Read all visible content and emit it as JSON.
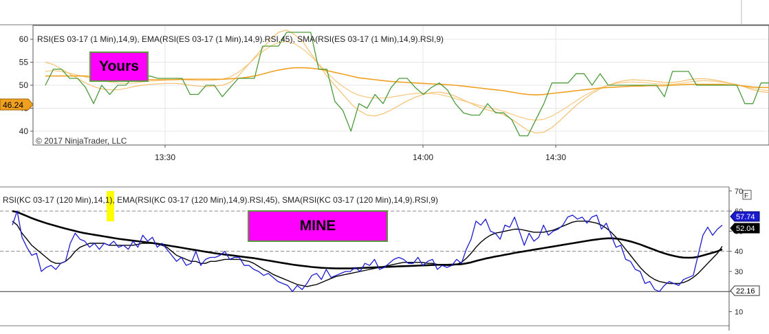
{
  "top_chart": {
    "indicator_label": "RSI(ES 03-17 (1 Min),14,9), EMA(RSI(ES 03-17 (1 Min),14,9).RSI,45), SMA(RSI(ES 03-17 (1 Min),14,9).RSI,9)",
    "copyright": "© 2017 NinjaTrader, LLC",
    "current_value_badge": "46.24",
    "callout_label": "Yours",
    "colors": {
      "badge": "#f0a020",
      "callout": "#ff00ff"
    }
  },
  "bottom_chart": {
    "indicator_label": "RSI(KC 03-17 (120 Min),14,1), EMA(RSI(KC 03-17 (120 Min),14,9).RSI,45), SMA(RSI(KC 03-17 (120 Min),14,9).RSI,9)",
    "callout_label": "MINE",
    "corner_button": "F",
    "badges": [
      "57.74",
      "52.04",
      "22.16"
    ],
    "colors": {
      "callout": "#ff00ff",
      "highlight": "#ffff00"
    }
  },
  "chart_data": [
    {
      "type": "line",
      "x_ticks": [
        "13:30",
        "14:00",
        "14:30"
      ],
      "y_ticks": [
        40,
        45,
        50,
        55,
        60
      ],
      "ylim": [
        37,
        63
      ],
      "grid": true,
      "colors": {
        "rsi": "#4a9a3a",
        "ema": "#f0a020",
        "sma": "#f5c070",
        "sma2": "#f8c880"
      },
      "series": [
        {
          "key": "rsi",
          "values": [
            50,
            53.5,
            53.5,
            51.5,
            51.5,
            49.5,
            46,
            50,
            48,
            50,
            50,
            52,
            52,
            52,
            51.5,
            51.5,
            51.5,
            51.5,
            48,
            48,
            50,
            50,
            47.5,
            49.5,
            51.5,
            51.5,
            51.5,
            58.5,
            58.5,
            58.5,
            61.5,
            61.5,
            61.5,
            61.5,
            53.5,
            53.5,
            46.5,
            44.5,
            40,
            46,
            45,
            48,
            46,
            49.5,
            51.5,
            51.5,
            49.5,
            48,
            49.5,
            50.5,
            49,
            46,
            44,
            43.5,
            43.5,
            46,
            44,
            44,
            42.5,
            39,
            39,
            42.5,
            46,
            50.5,
            50.5,
            50.5,
            52.5,
            52.5,
            50,
            52.5,
            50,
            50,
            50,
            50,
            50,
            50,
            50,
            47.5,
            53,
            53,
            53,
            50,
            50,
            50,
            50,
            50,
            50,
            46,
            46,
            50.5,
            50.5
          ]
        },
        {
          "key": "ema",
          "values": [
            52,
            52,
            52,
            52,
            52,
            52,
            51.8,
            51.6,
            51.4,
            51.3,
            51.2,
            51.2,
            51.2,
            51.2,
            51.2,
            51.2,
            51.2,
            51.3,
            51.3,
            51.3,
            51.3,
            51.3,
            51.3,
            51.4,
            51.5,
            51.7,
            52,
            52.4,
            52.9,
            53.3,
            53.6,
            53.8,
            53.8,
            53.7,
            53.5,
            53.2,
            52.8,
            52.4,
            52,
            51.6,
            51.4,
            51.2,
            51,
            50.8,
            50.7,
            50.6,
            50.5,
            50.4,
            50.3,
            50.2,
            50.1,
            50,
            49.8,
            49.6,
            49.4,
            49.2,
            49,
            48.8,
            48.5,
            48.2,
            48,
            47.9,
            48,
            48.2,
            48.4,
            48.6,
            48.8,
            49,
            49.2,
            49.4,
            49.5,
            49.6,
            49.7,
            49.8,
            49.8,
            49.9,
            49.9,
            49.9,
            50,
            50.1,
            50.2,
            50.2,
            50.2,
            50.2,
            50.2,
            50.1,
            50,
            49.8,
            49.6,
            49.5,
            49.5
          ]
        },
        {
          "key": "sma",
          "values": [
            55,
            54.5,
            53.5,
            52.5,
            51.5,
            50.5,
            49.7,
            49.2,
            49,
            49,
            49.3,
            49.7,
            50,
            50.2,
            50.3,
            50.4,
            50.4,
            50.3,
            50,
            49.8,
            49.7,
            49.8,
            50,
            50.6,
            52,
            54,
            56,
            58,
            60,
            61.5,
            62,
            61,
            59.5,
            57,
            54.5,
            52,
            50,
            48,
            46,
            44.5,
            43.5,
            43.3,
            43.8,
            44.6,
            45.6,
            46.6,
            47.4,
            48,
            48.4,
            48.5,
            48.2,
            47.6,
            46.8,
            46,
            45.2,
            44.6,
            44.2,
            43.6,
            42.6,
            41.4,
            40.2,
            39.6,
            39.8,
            40.8,
            42.3,
            44,
            45.6,
            47,
            48.2,
            49.2,
            50,
            50.6,
            51,
            51.2,
            51.1,
            51,
            50.8,
            50.6,
            50.6,
            50.8,
            51.2,
            51.4,
            51.4,
            51.2,
            50.9,
            50.5,
            50.2,
            49.6,
            49,
            48.6,
            48.4
          ]
        },
        {
          "key": "sma2",
          "values": [
            53,
            53.2,
            53,
            52.6,
            52.2,
            51.8,
            51.4,
            51,
            50.7,
            50.5,
            50.4,
            50.5,
            50.7,
            50.9,
            51,
            51.1,
            51.2,
            51.2,
            51.1,
            51,
            51,
            51.1,
            51.3,
            51.8,
            52.8,
            54.2,
            55.8,
            57.3,
            58.5,
            59.3,
            59.5,
            59,
            57.9,
            56.4,
            54.6,
            52.8,
            51.1,
            49.7,
            48.6,
            47.8,
            47.4,
            47.2,
            47.2,
            47.4,
            47.7,
            48,
            48.2,
            48.3,
            48.2,
            48,
            47.6,
            47.1,
            46.6,
            46.1,
            45.6,
            45.2,
            44.8,
            44.3,
            43.7,
            43.1,
            42.6,
            42.4,
            42.6,
            43.3,
            44.3,
            45.4,
            46.6,
            47.7,
            48.6,
            49.4,
            50,
            50.4,
            50.6,
            50.7,
            50.6,
            50.5,
            50.3,
            50.2,
            50.2,
            50.4,
            50.7,
            50.9,
            51,
            50.9,
            50.7,
            50.4,
            50.1,
            49.7,
            49.3,
            49,
            48.8
          ]
        }
      ]
    },
    {
      "type": "line",
      "y_ticks": [
        10,
        20,
        30,
        40,
        50,
        60,
        70
      ],
      "ylim": [
        3,
        72
      ],
      "reference_lines": [
        20,
        40,
        60
      ],
      "colors": {
        "rsi": "#1a1ad0",
        "ema": "#000000",
        "sma": "#000000"
      },
      "series": [
        {
          "key": "rsi",
          "values": [
            53,
            60,
            47,
            42,
            38,
            39,
            30,
            32,
            33,
            31,
            34,
            35,
            44,
            49,
            46,
            45,
            42,
            44,
            41,
            44,
            43,
            45,
            42,
            43,
            41,
            45,
            42,
            48,
            45,
            47,
            42,
            44,
            41,
            38,
            35,
            37,
            33,
            34,
            40,
            33,
            36,
            37,
            37,
            38,
            40,
            36,
            37,
            37,
            33,
            33,
            31,
            30,
            28,
            29,
            27,
            25,
            24,
            23,
            20,
            23,
            21,
            24,
            28,
            29,
            26,
            31,
            27,
            28,
            29,
            30,
            30,
            32,
            30,
            34,
            33,
            36,
            31,
            32,
            34,
            36,
            37,
            36,
            34,
            34,
            37,
            33,
            35,
            36,
            31,
            33,
            32,
            33,
            36,
            34,
            41,
            46,
            55,
            53,
            56,
            50,
            49,
            46,
            53,
            52,
            57,
            50,
            43,
            49,
            45,
            47,
            53,
            48,
            50,
            51,
            53,
            57,
            58,
            56,
            57,
            54,
            57,
            58,
            51,
            54,
            48,
            42,
            43,
            36,
            35,
            31,
            30,
            24,
            25,
            21,
            20,
            23,
            25,
            24,
            23,
            26,
            27,
            28,
            38,
            48,
            52,
            48,
            51,
            53
          ]
        },
        {
          "key": "ema",
          "values": [
            60,
            59.5,
            58.5,
            57.5,
            56.5,
            55.6,
            54.8,
            54,
            53.3,
            52.6,
            51.9,
            51.3,
            50.7,
            50.1,
            49.5,
            49,
            48.6,
            48.2,
            47.8,
            47.4,
            47,
            46.6,
            46.2,
            45.9,
            45.6,
            45.3,
            45,
            44.7,
            44.4,
            44.1,
            43.8,
            43.4,
            43,
            42.6,
            42.2,
            41.8,
            41.4,
            41,
            40.6,
            40.2,
            39.8,
            39.4,
            39,
            38.7,
            38.4,
            38.1,
            37.8,
            37.5,
            37.2,
            36.9,
            36.6,
            36.2,
            35.8,
            35.4,
            35,
            34.6,
            34.2,
            33.8,
            33.4,
            33.1,
            32.8,
            32.5,
            32.2,
            32,
            31.8,
            31.7,
            31.6,
            31.5,
            31.5,
            31.5,
            31.5,
            31.6,
            31.7,
            31.8,
            31.9,
            32,
            32.1,
            32.2,
            32.3,
            32.4,
            32.5,
            32.6,
            32.7,
            32.8,
            32.9,
            33,
            33.1,
            33.2,
            33.3,
            33.3,
            33.3,
            33.4,
            33.5,
            33.6,
            34,
            34.5,
            35.2,
            35.8,
            36.4,
            36.9,
            37.4,
            37.8,
            38.3,
            38.7,
            39.2,
            39.6,
            40,
            40.4,
            40.8,
            41.2,
            41.6,
            42,
            42.4,
            42.8,
            43.2,
            43.6,
            44,
            44.4,
            44.8,
            45.2,
            45.6,
            45.9,
            46.2,
            46.4,
            46.5,
            46.3,
            46,
            45.5,
            44.9,
            44.2,
            43.4,
            42.5,
            41.6,
            40.7,
            39.8,
            39,
            38.3,
            37.7,
            37.2,
            36.9,
            36.8,
            36.9,
            37.3,
            37.9,
            38.6,
            39.3,
            40,
            41
          ]
        },
        {
          "key": "sma",
          "values": [
            55,
            53,
            49,
            46,
            43,
            41,
            39,
            37,
            35,
            34,
            34,
            35,
            37,
            40,
            42,
            43,
            44,
            44,
            44,
            44,
            43,
            43,
            43,
            43,
            43,
            43,
            43.5,
            44,
            44,
            44,
            43.5,
            43,
            42,
            40,
            38,
            37,
            36,
            35,
            35,
            34,
            34,
            35,
            35,
            35.5,
            36,
            36,
            36,
            36,
            35.5,
            35,
            34,
            32.5,
            31,
            30,
            28.5,
            27.5,
            26.5,
            25.5,
            24.5,
            23.5,
            23,
            22.5,
            23,
            23.5,
            24.5,
            25.5,
            26.5,
            27.5,
            28,
            28.5,
            29,
            29.5,
            30,
            30.5,
            31,
            31.5,
            32,
            32.5,
            33,
            33.5,
            34,
            34.5,
            34.5,
            34.5,
            34.5,
            34.5,
            34,
            34,
            33.5,
            33,
            33,
            33,
            33.5,
            34.5,
            36.5,
            39,
            42,
            44.5,
            46.5,
            48,
            49,
            49.5,
            50,
            50.5,
            51,
            51,
            50.5,
            50,
            49.5,
            49.5,
            49.5,
            50,
            50.5,
            51.5,
            52.5,
            53.5,
            54.5,
            55,
            55,
            55,
            54.5,
            54,
            53,
            51.5,
            49.5,
            47,
            44,
            41,
            38,
            35,
            32,
            29.5,
            27.5,
            26,
            25,
            24.5,
            24,
            24,
            24,
            24.5,
            25.5,
            27,
            29,
            31.5,
            34,
            36.5,
            39,
            42.5
          ]
        }
      ]
    }
  ]
}
